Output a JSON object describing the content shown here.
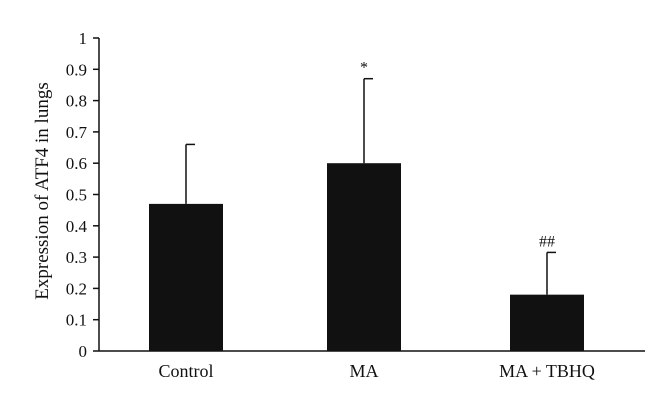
{
  "chart_data": {
    "type": "bar",
    "title": "",
    "xlabel": "",
    "ylabel": "Expression of ATF4 in lungs",
    "ylim": [
      0,
      1
    ],
    "yticks": [
      0,
      0.1,
      0.2,
      0.3,
      0.4,
      0.5,
      0.6,
      0.7,
      0.8,
      0.9,
      1
    ],
    "ytick_labels": [
      "0",
      "0.1",
      "0.2",
      "0.3",
      "0.4",
      "0.5",
      "0.6",
      "0.7",
      "0.8",
      "0.9",
      "1"
    ],
    "categories": [
      "Control",
      "MA",
      "MA + TBHQ"
    ],
    "values": [
      0.47,
      0.6,
      0.18
    ],
    "error_upper": [
      0.19,
      0.27,
      0.135
    ],
    "annotations": [
      "",
      "*",
      "##"
    ],
    "bar_color": "#111111",
    "grid": false,
    "legend": "none"
  }
}
